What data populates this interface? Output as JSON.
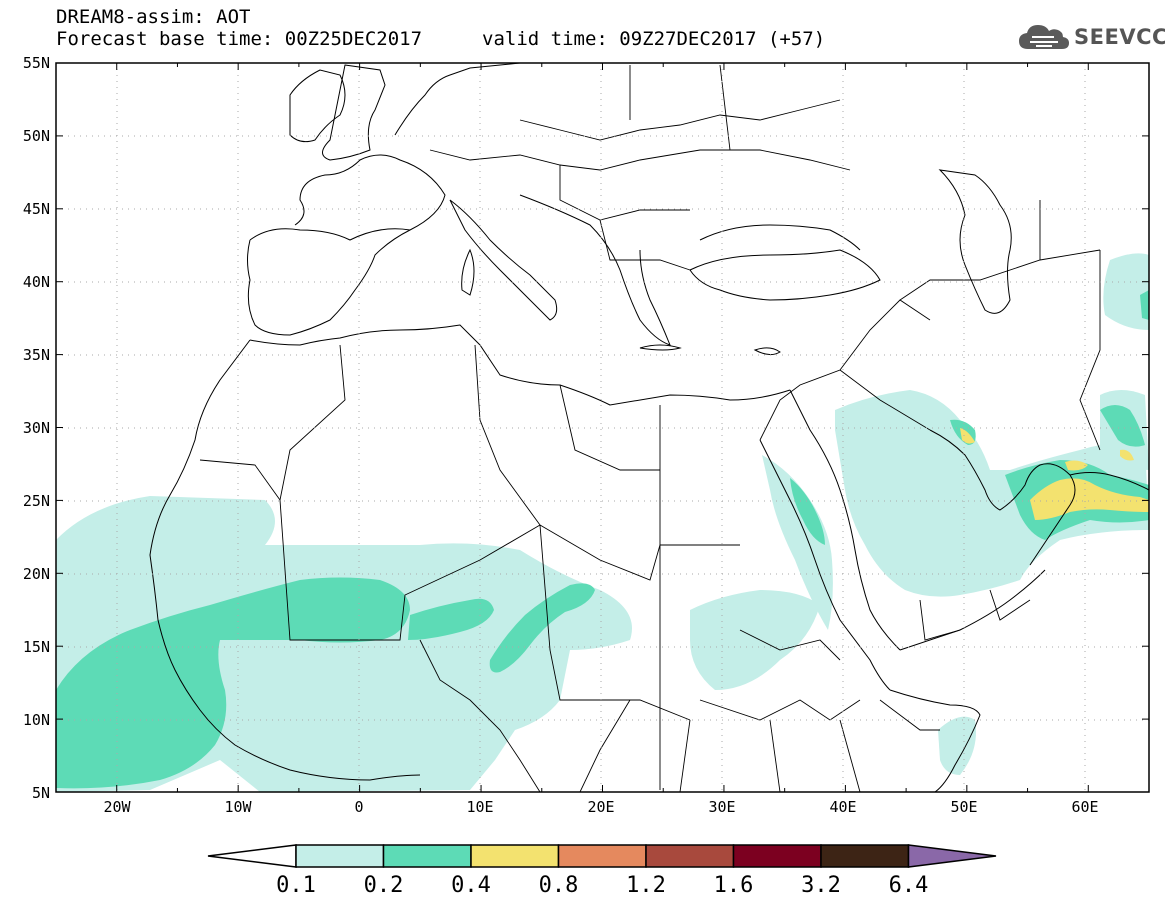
{
  "header": {
    "title": "DREAM8-assim: AOT",
    "base_time": "Forecast base time: 00Z25DEC2017",
    "valid_time": "valid time: 09Z27DEC2017 (+57)"
  },
  "logo": {
    "text": "SEEVCCC",
    "icon": "cloud-icon"
  },
  "map": {
    "lon_range": [
      -25,
      65
    ],
    "lat_range": [
      5,
      55
    ],
    "lon_ticks": [
      "20W",
      "10W",
      "0",
      "10E",
      "20E",
      "30E",
      "40E",
      "50E",
      "60E"
    ],
    "lat_ticks": [
      "55N",
      "50N",
      "45N",
      "40N",
      "35N",
      "30N",
      "25N",
      "20N",
      "15N",
      "10N",
      "5N"
    ],
    "grid": "dotted"
  },
  "colorbar": {
    "labels": [
      "0.1",
      "0.2",
      "0.4",
      "0.8",
      "1.2",
      "1.6",
      "3.2",
      "6.4"
    ],
    "colors": [
      "#ffffff",
      "#c4eee8",
      "#5ddbb6",
      "#f3e26f",
      "#e5895e",
      "#a8493d",
      "#7c0020",
      "#3d2415",
      "#8a68a8"
    ]
  }
}
